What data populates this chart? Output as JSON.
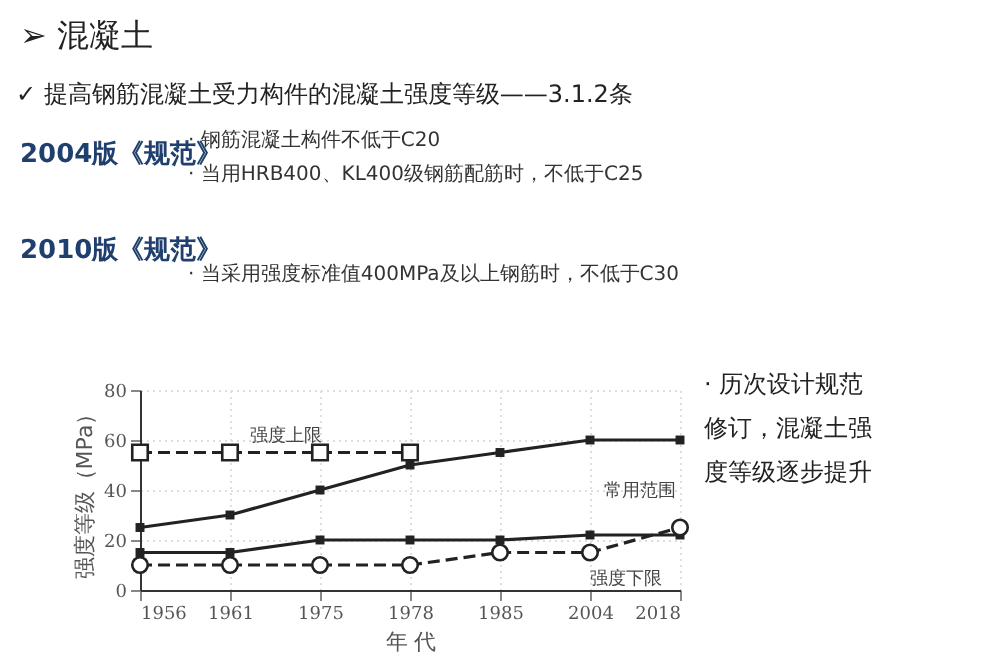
{
  "chart_data": {
    "type": "line",
    "title": "➢ 混凝土",
    "subtitle": "✓ 提高钢筋混凝土受力构件的混凝土强度等级——3.1.2条",
    "xlabel": "年 代",
    "ylabel": "强度等级（MPa）",
    "categories": [
      "1956",
      "1961",
      "1975",
      "1978",
      "1985",
      "2004",
      "2018"
    ],
    "series": [
      {
        "color": "#222222",
        "values": [
          55,
          55,
          55,
          55,
          null,
          null,
          null
        ],
        "marker": "square",
        "line_style": "dashed"
      },
      {
        "color": "#222222",
        "values": [
          25,
          30,
          40,
          50,
          55,
          60,
          60
        ],
        "marker": "square",
        "line_style": "solid"
      },
      {
        "color": "#222222",
        "values": [
          15,
          15,
          20,
          20,
          20,
          22,
          22
        ],
        "marker": "square",
        "line_style": "solid"
      },
      {
        "color": "#222222",
        "values": [
          10,
          10,
          10,
          10,
          15,
          15,
          25
        ],
        "marker": "circle",
        "line_style": "dashed"
      }
    ],
    "ylim": [
      0,
      80
    ],
    "yticks": [
      0,
      20,
      40,
      60,
      80
    ],
    "grid": true,
    "annotations": [
      "2004版《规范》",
      "· 钢筋混凝土构件不低于C20",
      "· 当用HRB400、KL400级钢筋配筋时，不低于C25",
      "2010版《规范》",
      "· 当采用强度标准值400MPa及以上钢筋时，不低于C30",
      {
        "text": "强度上限",
        "x": "1961",
        "y": 62
      },
      "常用范围",
      "强度下限",
      "· 历次设计规范修订，混凝土强度等级逐步提升"
    ]
  }
}
